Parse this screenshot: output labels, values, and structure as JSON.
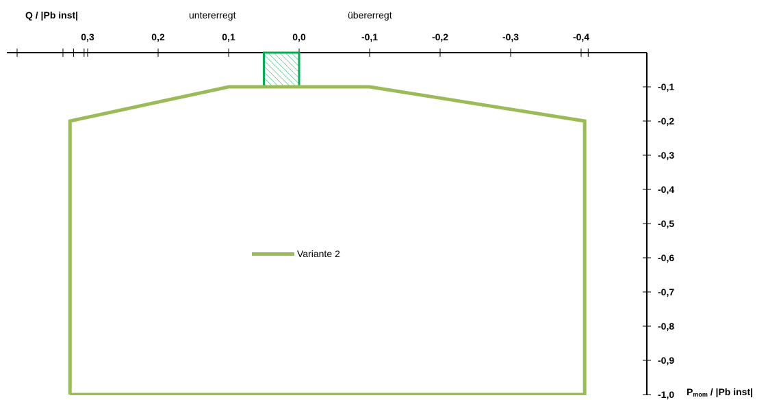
{
  "chart_data": {
    "type": "line",
    "x_axis_label": "/ |Pb inst|",
    "x_axis_label_main": "P",
    "x_axis_label_sub": "mom",
    "y_axis_label": "Q / |Pb inst|",
    "region_labels": {
      "left": "untererregt",
      "right": "übererregt"
    },
    "x_ticks": [
      "0,3",
      "0,2",
      "0,1",
      "0,0",
      "-0,1",
      "-0,2",
      "-0,3",
      "-0,4"
    ],
    "x_tick_values": [
      0.3,
      0.2,
      0.1,
      0.0,
      -0.1,
      -0.2,
      -0.3,
      -0.4
    ],
    "y_ticks": [
      "-0,1",
      "-0,2",
      "-0,3",
      "-0,4",
      "-0,5",
      "-0,6",
      "-0,7",
      "-0,8",
      "-0,9",
      "-1,0"
    ],
    "y_tick_values": [
      -0.1,
      -0.2,
      -0.3,
      -0.4,
      -0.5,
      -0.6,
      -0.7,
      -0.8,
      -0.9,
      -1.0
    ],
    "xlim": [
      0.4,
      -0.5
    ],
    "ylim": [
      0,
      -1.0
    ],
    "series": [
      {
        "name": "Variante 2",
        "color": "#9bbb59",
        "x": [
          0.325,
          0.325,
          0.1,
          -0.1,
          -0.405,
          -0.405,
          0.325
        ],
        "y": [
          -1.0,
          -0.2,
          -0.1,
          -0.1,
          -0.2,
          -1.0,
          -1.0
        ]
      }
    ],
    "shaded_region": {
      "x": [
        0.05,
        0.0
      ],
      "y": [
        0,
        -0.1
      ],
      "color": "#00b050"
    },
    "legend": {
      "position": "center"
    }
  }
}
